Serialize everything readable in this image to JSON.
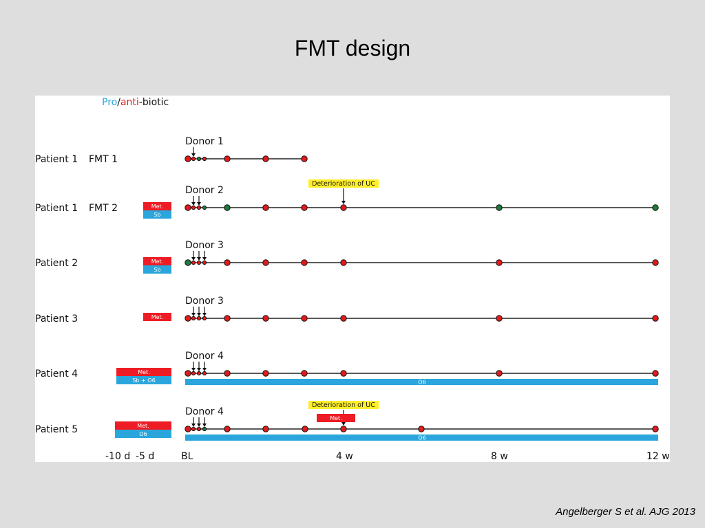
{
  "slide": {
    "title": "FMT design",
    "citation": "Angelberger S et al. AJG 2013"
  },
  "legend": {
    "pro": "Pro",
    "slash": "/",
    "anti": "anti",
    "suffix": "-biotic"
  },
  "colors": {
    "pro": "#2aa6dc",
    "anti": "#e31a1c",
    "red_dot": "#e31a1c",
    "green_dot": "#1f7a3a",
    "bar_blue": "#2aa6dc",
    "bar_red": "#ee1c24",
    "highlight": "#ffef2a"
  },
  "axis": [
    "-10 d",
    "-5 d",
    "BL",
    "4 w",
    "8 w",
    "12 w"
  ],
  "rows": [
    {
      "patient": "Patient 1",
      "fmt": "FMT 1",
      "donor": "Donor 1",
      "arrows": 1,
      "dots": [
        {
          "t": 0,
          "c": "red"
        },
        {
          "t": 1,
          "c": "red"
        },
        {
          "t": 2,
          "c": "green"
        },
        {
          "t": 3,
          "c": "red"
        },
        {
          "t": 4,
          "c": "red"
        },
        {
          "t": 5,
          "c": "red"
        },
        {
          "t": 6,
          "c": "red"
        }
      ]
    },
    {
      "patient": "Patient 1",
      "fmt": "FMT 2",
      "donor": "Donor 2",
      "arrows": 2,
      "pre": [
        {
          "label": "Met.",
          "color": "red"
        },
        {
          "label": "Sb",
          "color": "blue"
        }
      ],
      "note": "Deterioration of UC",
      "dots": [
        {
          "t": 0,
          "c": "red"
        },
        {
          "t": 1,
          "c": "red"
        },
        {
          "t": 2,
          "c": "red"
        },
        {
          "t": 3,
          "c": "green"
        },
        {
          "t": 4,
          "c": "green"
        },
        {
          "t": 5,
          "c": "red"
        },
        {
          "t": 6,
          "c": "red"
        },
        {
          "t": 7,
          "c": "red"
        },
        {
          "t": 8,
          "c": "green"
        },
        {
          "t": 9,
          "c": "green"
        }
      ]
    },
    {
      "patient": "Patient 2",
      "fmt": "",
      "donor": "Donor 3",
      "arrows": 3,
      "pre": [
        {
          "label": "Met.",
          "color": "red"
        },
        {
          "label": "Sb",
          "color": "blue"
        }
      ],
      "dots": [
        {
          "t": 0,
          "c": "green"
        },
        {
          "t": 1,
          "c": "red"
        },
        {
          "t": 2,
          "c": "red"
        },
        {
          "t": 3,
          "c": "red"
        },
        {
          "t": 4,
          "c": "red"
        },
        {
          "t": 5,
          "c": "red"
        },
        {
          "t": 6,
          "c": "red"
        },
        {
          "t": 7,
          "c": "red"
        },
        {
          "t": 8,
          "c": "red"
        },
        {
          "t": 9,
          "c": "red"
        }
      ]
    },
    {
      "patient": "Patient 3",
      "fmt": "",
      "donor": "Donor 3",
      "arrows": 3,
      "pre": [
        {
          "label": "Met.",
          "color": "red"
        }
      ],
      "dots": [
        {
          "t": 0,
          "c": "red"
        },
        {
          "t": 1,
          "c": "red"
        },
        {
          "t": 2,
          "c": "red"
        },
        {
          "t": 3,
          "c": "red"
        },
        {
          "t": 4,
          "c": "red"
        },
        {
          "t": 5,
          "c": "red"
        },
        {
          "t": 6,
          "c": "red"
        },
        {
          "t": 7,
          "c": "red"
        },
        {
          "t": 8,
          "c": "red"
        },
        {
          "t": 9,
          "c": "red"
        }
      ]
    },
    {
      "patient": "Patient 4",
      "fmt": "",
      "donor": "Donor 4",
      "arrows": 3,
      "pre": [
        {
          "label": "Met.",
          "color": "red"
        },
        {
          "label": "Sb + O6",
          "color": "blue"
        }
      ],
      "bar": "O6",
      "dots": [
        {
          "t": 0,
          "c": "red"
        },
        {
          "t": 1,
          "c": "red"
        },
        {
          "t": 2,
          "c": "red"
        },
        {
          "t": 3,
          "c": "red"
        },
        {
          "t": 4,
          "c": "red"
        },
        {
          "t": 5,
          "c": "red"
        },
        {
          "t": 6,
          "c": "red"
        },
        {
          "t": 7,
          "c": "red"
        },
        {
          "t": 8,
          "c": "red"
        },
        {
          "t": 9,
          "c": "red"
        }
      ]
    },
    {
      "patient": "Patient 5",
      "fmt": "",
      "donor": "Donor 4",
      "arrows": 3,
      "pre": [
        {
          "label": "Met.",
          "color": "red"
        },
        {
          "label": "O6",
          "color": "blue"
        }
      ],
      "note": "Deterioration of UC",
      "note_bar": "Met.",
      "bar": "O6",
      "dots": [
        {
          "t": 0,
          "c": "red"
        },
        {
          "t": 1,
          "c": "red"
        },
        {
          "t": 2,
          "c": "red"
        },
        {
          "t": 3,
          "c": "green"
        },
        {
          "t": 4,
          "c": "red"
        },
        {
          "t": 5,
          "c": "red"
        },
        {
          "t": 6,
          "c": "red"
        },
        {
          "t": 7,
          "c": "red"
        },
        {
          "t": 8,
          "c": "red"
        },
        {
          "t": 9,
          "c": "red"
        }
      ]
    }
  ]
}
